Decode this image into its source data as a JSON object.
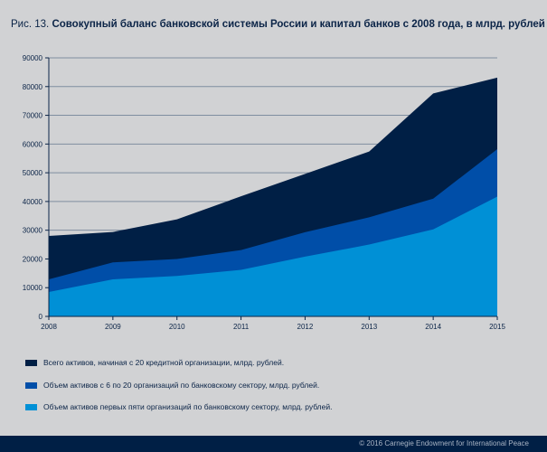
{
  "title": {
    "prefix": "Рис. 13.",
    "text": "Совокупный баланс банковской системы России и капитал банков с 2008 года, в млрд. рублей"
  },
  "chart_data": {
    "type": "area",
    "stacked": false,
    "title": "Рис. 13. Совокупный баланс банковской системы России и капитал банков с 2008 года, в млрд. рублей",
    "x": [
      "2008",
      "2009",
      "2010",
      "2011",
      "2012",
      "2013",
      "2014",
      "2015"
    ],
    "ylim": [
      0,
      90000
    ],
    "yticks": [
      "0",
      "10000",
      "20000",
      "30000",
      "40000",
      "50000",
      "60000",
      "70000",
      "80000",
      "90000"
    ],
    "grid": true,
    "legend_position": "bottom",
    "series": [
      {
        "name": "Всего активов, начиная с 20 кредитной организации, млрд. рублей.",
        "color": "#001f45",
        "values": [
          28000,
          29400,
          33800,
          41800,
          49600,
          57400,
          77600,
          83100
        ]
      },
      {
        "name": "Объем активов с 6 по 20 организаций по банковскому сектору, млрд. рублей.",
        "color": "#004ea8",
        "values": [
          12900,
          18800,
          20000,
          23100,
          29300,
          34500,
          41000,
          58200
        ]
      },
      {
        "name": "Объем активов первых пяти организаций по банковскому сектору, млрд. рублей.",
        "color": "#0090d6",
        "values": [
          8500,
          12900,
          14100,
          16200,
          20800,
          25000,
          30300,
          41700
        ]
      }
    ]
  },
  "footer": {
    "copyright": "© 2016 Carnegie Endowment for International Peace"
  }
}
